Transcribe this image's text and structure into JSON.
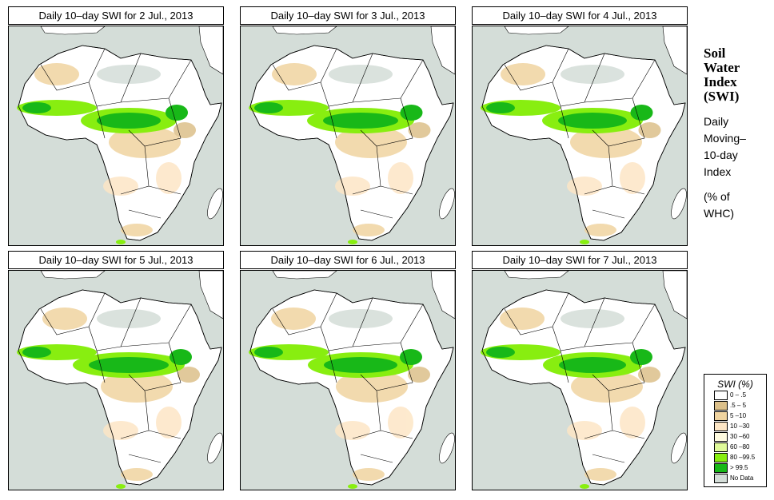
{
  "panels": [
    {
      "title": "Daily 10–day SWI for  2 Jul., 2013"
    },
    {
      "title": "Daily 10–day SWI for  3 Jul., 2013"
    },
    {
      "title": "Daily 10–day SWI for  4 Jul., 2013"
    },
    {
      "title": "Daily 10–day SWI for  5 Jul., 2013"
    },
    {
      "title": "Daily 10–day SWI for  6 Jul., 2013"
    },
    {
      "title": "Daily 10–day SWI for  7 Jul., 2013"
    }
  ],
  "side": {
    "title_lines": [
      "Soil",
      "Water",
      "Index",
      "(SWI)"
    ],
    "desc_lines": [
      "Daily",
      "Moving–",
      "10-day",
      "Index"
    ],
    "unit_lines": [
      "(% of",
      " WHC)"
    ]
  },
  "legend": {
    "title": "SWI (%)",
    "items": [
      {
        "label": "0 – .5",
        "color": "#ffffff"
      },
      {
        "label": ".5 – 5",
        "color": "#dcc08a"
      },
      {
        "label": "5 –10",
        "color": "#f0d4a0"
      },
      {
        "label": "10 –30",
        "color": "#fde6c6"
      },
      {
        "label": "30 –60",
        "color": "#fffbe0"
      },
      {
        "label": "60 –80",
        "color": "#e0fa9a"
      },
      {
        "label": "80 –99.5",
        "color": "#88ee10"
      },
      {
        "label": "> 99.5",
        "color": "#18b818"
      },
      {
        "label": "No Data",
        "color": "#d4ddd8"
      }
    ]
  }
}
